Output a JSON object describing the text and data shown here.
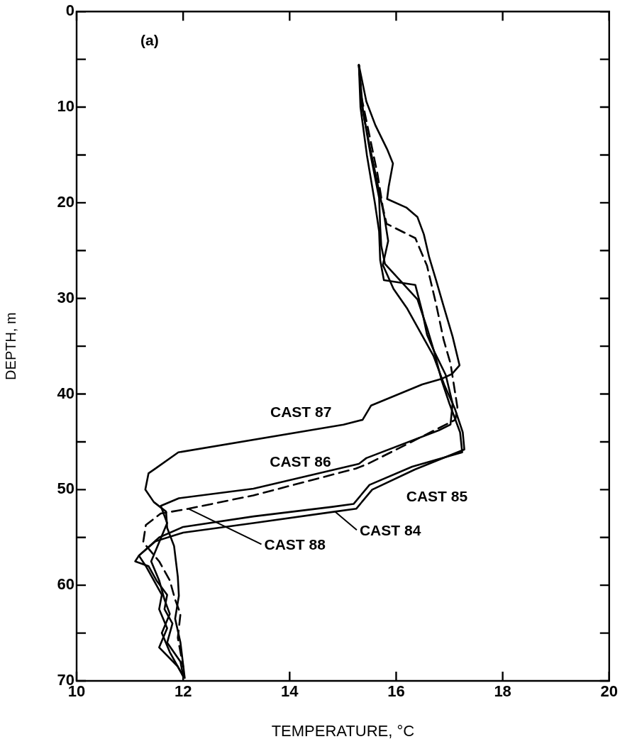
{
  "chart_data": {
    "type": "line",
    "xlabel": "TEMPERATURE, °C",
    "ylabel": "DEPTH, m",
    "xlim": [
      10,
      20
    ],
    "xticks": [
      10,
      12,
      14,
      16,
      18,
      20
    ],
    "ylim": [
      70,
      0
    ],
    "yticks": [
      0,
      {
        "value": 5,
        "label": null
      },
      10,
      {
        "value": 15,
        "label": null
      },
      20,
      {
        "value": 25,
        "label": null
      },
      30,
      {
        "value": 35,
        "label": null
      },
      40,
      {
        "value": 45,
        "label": null
      },
      50,
      {
        "value": 55,
        "label": null
      },
      60,
      {
        "value": 65,
        "label": null
      },
      70
    ],
    "marker": "none",
    "legend": false,
    "series": [
      {
        "color": "#000000",
        "line_style": "solid",
        "x": [
          15.3,
          15.44,
          15.61,
          15.83,
          15.94,
          15.86,
          15.83,
          16.19,
          16.4,
          16.52,
          16.62,
          16.75,
          16.88,
          17.06,
          17.19,
          17.05,
          16.86,
          16.49,
          15.53,
          15.37,
          15.01,
          11.91,
          11.48,
          11.35,
          11.29,
          11.45,
          11.68,
          11.7,
          11.83,
          11.9,
          11.92,
          11.85,
          11.95,
          12.03
        ],
        "values": [
          5.6,
          9.4,
          11.9,
          14.4,
          15.9,
          18.3,
          19.6,
          20.5,
          21.5,
          23.3,
          25.7,
          28.1,
          30.6,
          34.0,
          37.0,
          37.9,
          38.4,
          39.0,
          41.2,
          42.7,
          43.2,
          46.1,
          47.8,
          48.3,
          50.0,
          51.3,
          52.3,
          54.0,
          55.9,
          59.1,
          61.1,
          63.5,
          66.0,
          69.7
        ]
      },
      {
        "color": "#000000",
        "line_style": "solid",
        "x": [
          15.3,
          15.38,
          15.52,
          15.68,
          15.7,
          15.72,
          15.79,
          16.4,
          16.58,
          16.71,
          16.93,
          17.06,
          17.02,
          16.8,
          15.44,
          15.3,
          13.32,
          11.92,
          11.58,
          11.7,
          11.55,
          11.4,
          11.55,
          11.65,
          11.75,
          11.6,
          11.75,
          12.0
        ],
        "values": [
          5.6,
          10.5,
          15.0,
          19.5,
          22.5,
          24.5,
          26.4,
          30.1,
          33.1,
          35.5,
          38.0,
          41.0,
          43.2,
          43.8,
          46.7,
          47.3,
          49.9,
          50.9,
          51.7,
          53.5,
          55.5,
          57.5,
          59.5,
          61.5,
          63.0,
          65.0,
          67.0,
          69.5
        ]
      },
      {
        "color": "#000000",
        "line_style": "solid",
        "x": [
          15.3,
          15.33,
          15.45,
          15.6,
          15.68,
          15.7,
          15.77,
          16.36,
          16.49,
          16.58,
          16.71,
          16.85,
          17.0,
          17.2,
          17.24,
          16.3,
          15.5,
          15.2,
          14.8,
          13.32,
          12.0,
          11.55,
          11.17,
          11.3,
          11.45,
          11.6,
          11.55,
          11.7,
          11.55,
          11.9,
          12.0
        ],
        "values": [
          5.6,
          10.0,
          15.0,
          20.0,
          23.0,
          26.0,
          28.1,
          28.6,
          31.4,
          33.8,
          35.5,
          38.5,
          41.0,
          44.0,
          46.1,
          47.6,
          49.5,
          51.5,
          51.8,
          52.8,
          53.9,
          55.0,
          56.9,
          58.0,
          59.5,
          61.0,
          62.5,
          64.5,
          66.5,
          68.5,
          69.5
        ]
      },
      {
        "color": "#000000",
        "line_style": "solid",
        "x": [
          15.3,
          15.36,
          15.5,
          15.65,
          15.78,
          15.85,
          15.75,
          15.95,
          16.2,
          16.45,
          16.7,
          16.9,
          17.1,
          17.25,
          17.28,
          16.35,
          15.55,
          15.25,
          14.85,
          13.32,
          12.0,
          11.48,
          11.17,
          11.1,
          11.35,
          11.5,
          11.7,
          11.65,
          11.8,
          11.7,
          11.95,
          12.0
        ],
        "values": [
          5.6,
          10.0,
          14.0,
          18.0,
          21.5,
          24.0,
          26.5,
          29.0,
          31.0,
          33.5,
          36.0,
          39.0,
          41.5,
          44.0,
          45.8,
          47.9,
          50.0,
          52.0,
          52.3,
          53.5,
          54.5,
          55.4,
          56.9,
          57.5,
          58.0,
          59.5,
          61.0,
          62.5,
          64.0,
          66.0,
          68.0,
          69.5
        ]
      },
      {
        "color": "#000000",
        "line_style": "dashed",
        "x": [
          15.3,
          15.35,
          15.5,
          15.65,
          15.75,
          15.82,
          16.36,
          16.58,
          16.75,
          16.89,
          17.02,
          17.15,
          17.11,
          15.47,
          15.24,
          13.32,
          12.1,
          11.58,
          11.3,
          11.25,
          11.55,
          11.75,
          11.85,
          11.95,
          11.9,
          12.0
        ],
        "values": [
          5.6,
          9.0,
          13.0,
          17.0,
          20.5,
          22.2,
          23.7,
          26.6,
          30.6,
          34.3,
          36.8,
          41.4,
          42.7,
          47.3,
          47.8,
          50.6,
          52.0,
          52.5,
          53.7,
          55.5,
          57.5,
          59.5,
          61.5,
          63.0,
          65.5,
          68.5
        ]
      }
    ],
    "annotations": [
      "(a)",
      {
        "text": "CAST 87",
        "x": 15.01,
        "y": 43.2
      },
      {
        "text": "CAST 86",
        "x": 15.44,
        "y": 46.7
      },
      {
        "text": "CAST 85",
        "x": 15.5,
        "y": 49.5
      },
      {
        "text": "CAST 84",
        "x": 14.85,
        "y": 52.3
      },
      {
        "text": "CAST 88",
        "x": 12.1,
        "y": 52.0
      }
    ]
  }
}
